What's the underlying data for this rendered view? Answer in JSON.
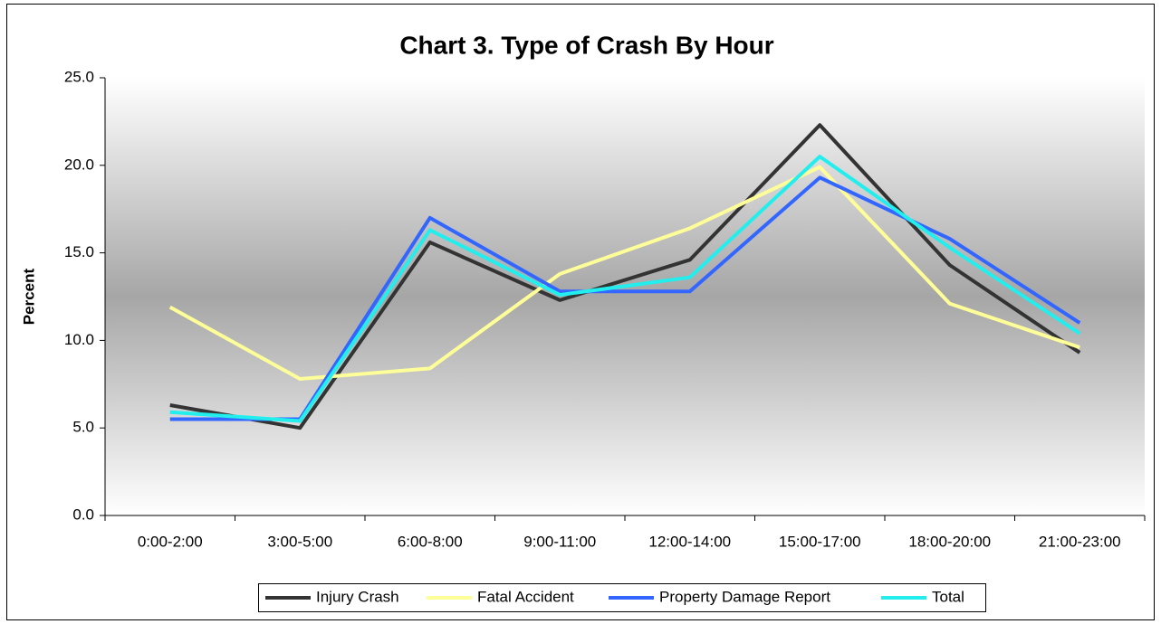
{
  "chart_data": {
    "type": "line",
    "title": "Chart 3. Type of Crash By Hour",
    "y_label": "Percent",
    "categories": [
      "0:00-2:00",
      "3:00-5:00",
      "6:00-8:00",
      "9:00-11:00",
      "12:00-14:00",
      "15:00-17:00",
      "18:00-20:00",
      "21:00-23:00"
    ],
    "series": [
      {
        "name": "Injury Crash",
        "color": "#333333",
        "values": [
          6.3,
          5.0,
          15.6,
          12.3,
          14.6,
          22.3,
          14.3,
          9.3
        ]
      },
      {
        "name": "Fatal Accident",
        "color": "#ffff99",
        "values": [
          11.9,
          7.8,
          8.4,
          13.8,
          16.4,
          19.9,
          12.1,
          9.6
        ]
      },
      {
        "name": "Property Damage Report",
        "color": "#3366ff",
        "values": [
          5.5,
          5.5,
          17.0,
          12.8,
          12.8,
          19.3,
          15.8,
          11.0
        ]
      },
      {
        "name": "Total",
        "color": "#22eeee",
        "values": [
          5.9,
          5.4,
          16.3,
          12.6,
          13.6,
          20.5,
          15.3,
          10.4
        ]
      }
    ],
    "ylim": [
      0,
      25
    ],
    "yticks": [
      {
        "value": 0,
        "label": "0.0"
      },
      {
        "value": 5,
        "label": "5.0"
      },
      {
        "value": 10,
        "label": "10.0"
      },
      {
        "value": 15,
        "label": "15.0"
      },
      {
        "value": 20,
        "label": "20.0"
      },
      {
        "value": 25,
        "label": "25.0"
      }
    ],
    "legend": "bottom"
  }
}
